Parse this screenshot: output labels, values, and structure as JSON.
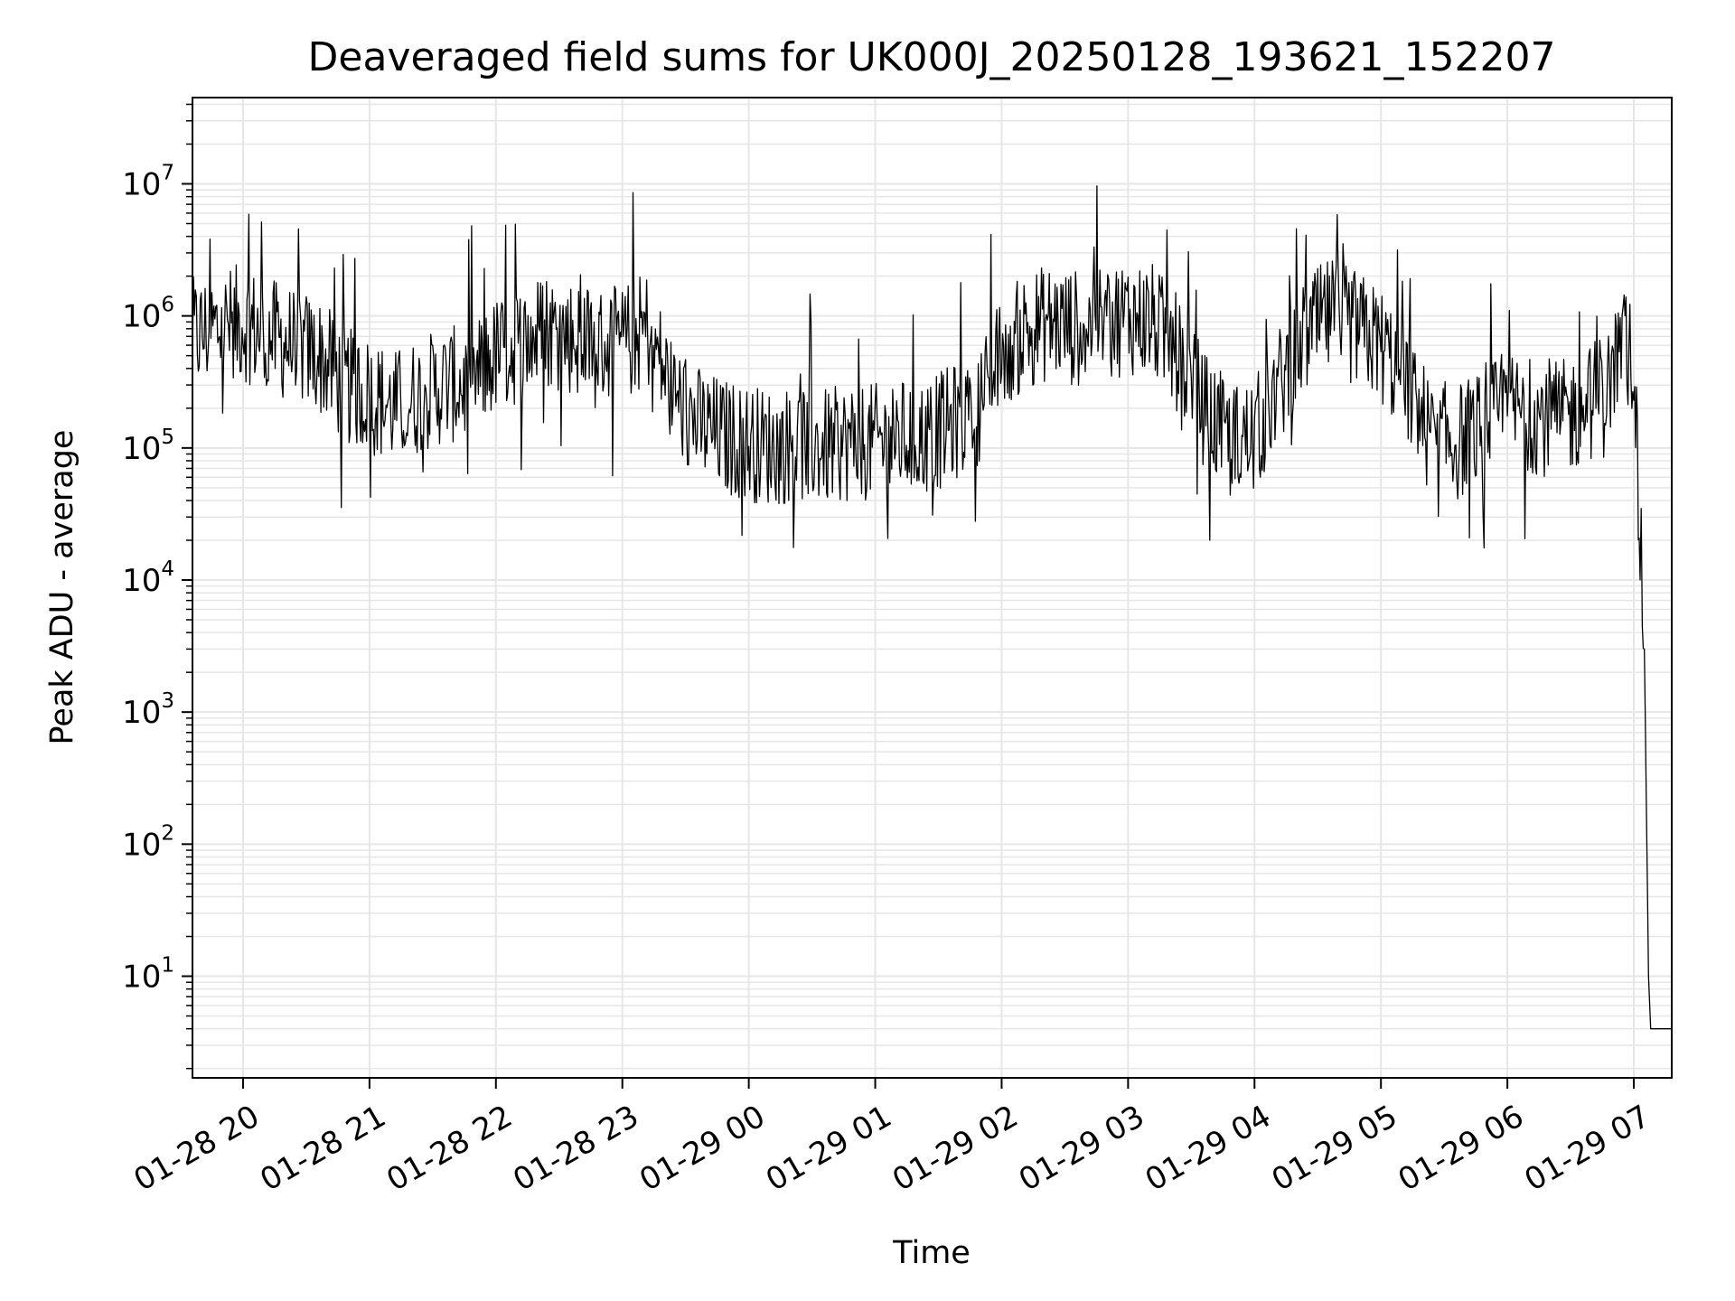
{
  "chart_data": {
    "type": "line",
    "title": "Deaveraged field sums for UK000J_20250128_193621_152207",
    "xlabel": "Time",
    "ylabel": "Peak ADU - average",
    "yscale": "log",
    "ylim": [
      1.7,
      45000000
    ],
    "xlim": [
      "2025-01-28 19:36",
      "2025-01-29 07:18"
    ],
    "grid": true,
    "legend": "none",
    "line_color": "#000000",
    "x_tick_labels": [
      "01-28 20",
      "01-28 21",
      "01-28 22",
      "01-28 23",
      "01-29 00",
      "01-29 01",
      "01-29 02",
      "01-29 03",
      "01-29 04",
      "01-29 05",
      "01-29 06",
      "01-29 07"
    ],
    "y_tick_labels": [
      {
        "base": "10",
        "exp": "1"
      },
      {
        "base": "10",
        "exp": "2"
      },
      {
        "base": "10",
        "exp": "3"
      },
      {
        "base": "10",
        "exp": "4"
      },
      {
        "base": "10",
        "exp": "5"
      },
      {
        "base": "10",
        "exp": "6"
      },
      {
        "base": "10",
        "exp": "7"
      }
    ],
    "series": [
      {
        "x": [
          "2025-01-28 19:36",
          "2025-01-28 19:48",
          "2025-01-28 20:00",
          "2025-01-28 20:12",
          "2025-01-28 20:24",
          "2025-01-28 20:36",
          "2025-01-28 20:48",
          "2025-01-28 21:00",
          "2025-01-28 21:12",
          "2025-01-28 21:24",
          "2025-01-28 21:36",
          "2025-01-28 21:48",
          "2025-01-28 22:00",
          "2025-01-28 22:12",
          "2025-01-28 22:24",
          "2025-01-28 22:36",
          "2025-01-28 22:48",
          "2025-01-28 23:00",
          "2025-01-28 23:06",
          "2025-01-28 23:12",
          "2025-01-28 23:24",
          "2025-01-28 23:36",
          "2025-01-28 23:48",
          "2025-01-29 00:00",
          "2025-01-29 00:12",
          "2025-01-29 00:24",
          "2025-01-29 00:36",
          "2025-01-29 00:48",
          "2025-01-29 01:00",
          "2025-01-29 01:12",
          "2025-01-29 01:24",
          "2025-01-29 01:36",
          "2025-01-29 01:48",
          "2025-01-29 02:00",
          "2025-01-29 02:12",
          "2025-01-29 02:24",
          "2025-01-29 02:36",
          "2025-01-29 02:48",
          "2025-01-29 03:00",
          "2025-01-29 03:12",
          "2025-01-29 03:24",
          "2025-01-29 03:36",
          "2025-01-29 03:48",
          "2025-01-29 04:00",
          "2025-01-29 04:12",
          "2025-01-29 04:24",
          "2025-01-29 04:36",
          "2025-01-29 04:48",
          "2025-01-29 05:00",
          "2025-01-29 05:12",
          "2025-01-29 05:24",
          "2025-01-29 05:36",
          "2025-01-29 05:48",
          "2025-01-29 06:00",
          "2025-01-29 06:12",
          "2025-01-29 06:24",
          "2025-01-29 06:36",
          "2025-01-29 06:48",
          "2025-01-29 06:54",
          "2025-01-29 07:00",
          "2025-01-29 07:03",
          "2025-01-29 07:05",
          "2025-01-29 07:07",
          "2025-01-29 07:08",
          "2025-01-29 07:18"
        ],
        "y": [
          700000,
          800000,
          900000,
          700000,
          600000,
          500000,
          300000,
          250000,
          200000,
          250000,
          300000,
          300000,
          500000,
          600000,
          800000,
          700000,
          600000,
          600000,
          700000,
          800000,
          250000,
          150000,
          120000,
          110000,
          100000,
          110000,
          100000,
          110000,
          110000,
          120000,
          120000,
          150000,
          200000,
          500000,
          800000,
          900000,
          800000,
          900000,
          1000000,
          900000,
          500000,
          200000,
          110000,
          120000,
          300000,
          700000,
          1000000,
          800000,
          600000,
          300000,
          120000,
          110000,
          140000,
          200000,
          180000,
          160000,
          200000,
          300000,
          600000,
          500000,
          20000,
          3000,
          10,
          4,
          4
        ]
      }
    ]
  }
}
